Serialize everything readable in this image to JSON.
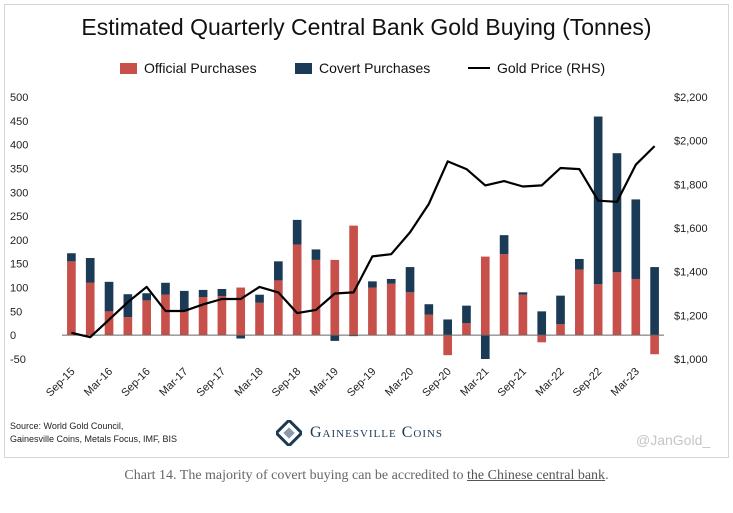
{
  "caption": {
    "text": "Chart 14. The majority of covert buying can be accredited to ",
    "link_text": "the Chinese central bank",
    "suffix": "."
  },
  "source": {
    "line1": "Source: World Gold Council,",
    "line2": "Gainesville Coins, Metals Focus, IMF, BIS"
  },
  "brand": {
    "name": "Gainesville Coins"
  },
  "watermark": "@JanGold_",
  "colors": {
    "official": "#c8504a",
    "covert": "#1b3a55",
    "gold_line": "#000000",
    "grid": "#e0e0e0"
  },
  "chart_data": {
    "type": "bar",
    "title": "Estimated Quarterly Central Bank Gold Buying (Tonnes)",
    "legend": [
      "Official Purchases",
      "Covert Purchases",
      "Gold Price (RHS)"
    ],
    "legend_position": "top",
    "stacked": true,
    "grid": false,
    "ylim": [
      -50,
      500
    ],
    "yticks": [
      "500",
      "450",
      "400",
      "350",
      "300",
      "250",
      "200",
      "150",
      "100",
      "50",
      "0",
      "-50"
    ],
    "y2lim": [
      1000,
      2200
    ],
    "y2ticks": [
      "$2,200",
      "$2,000",
      "$1,800",
      "$1,600",
      "$1,400",
      "$1,200",
      "$1,000"
    ],
    "xtick_labels": [
      "Sep-15",
      "Mar-16",
      "Sep-16",
      "Mar-17",
      "Sep-17",
      "Mar-18",
      "Sep-18",
      "Mar-19",
      "Sep-19",
      "Mar-20",
      "Sep-20",
      "Mar-21",
      "Sep-21",
      "Mar-22",
      "Sep-22",
      "Mar-23"
    ],
    "categories": [
      "Sep-15",
      "Dec-15",
      "Mar-16",
      "Jun-16",
      "Sep-16",
      "Dec-16",
      "Mar-17",
      "Jun-17",
      "Sep-17",
      "Dec-17",
      "Mar-18",
      "Jun-18",
      "Sep-18",
      "Dec-18",
      "Mar-19",
      "Jun-19",
      "Sep-19",
      "Dec-19",
      "Mar-20",
      "Jun-20",
      "Sep-20",
      "Dec-20",
      "Mar-21",
      "Jun-21",
      "Sep-21",
      "Dec-21",
      "Mar-22",
      "Jun-22",
      "Sep-22",
      "Dec-22",
      "Mar-23",
      "Jun-23"
    ],
    "series": [
      {
        "name": "Official Purchases",
        "type": "bar",
        "values": [
          155,
          110,
          50,
          38,
          73,
          85,
          50,
          80,
          82,
          100,
          68,
          115,
          190,
          158,
          158,
          230,
          100,
          108,
          90,
          43,
          -42,
          25,
          165,
          170,
          85,
          -15,
          23,
          138,
          107,
          132,
          118,
          -40
        ]
      },
      {
        "name": "Covert Purchases",
        "type": "bar",
        "values": [
          17,
          52,
          62,
          48,
          15,
          25,
          43,
          15,
          15,
          -7,
          17,
          40,
          52,
          22,
          -12,
          -2,
          13,
          10,
          53,
          22,
          33,
          37,
          -50,
          40,
          5,
          50,
          60,
          22,
          352,
          250,
          167,
          143
        ]
      },
      {
        "name": "Gold Price (RHS)",
        "type": "line",
        "values": [
          1120,
          1100,
          1180,
          1260,
          1330,
          1220,
          1220,
          1250,
          1275,
          1275,
          1330,
          1305,
          1210,
          1225,
          1300,
          1305,
          1470,
          1480,
          1580,
          1710,
          1905,
          1870,
          1795,
          1815,
          1790,
          1795,
          1875,
          1870,
          1725,
          1720,
          1890,
          1975
        ]
      }
    ]
  }
}
